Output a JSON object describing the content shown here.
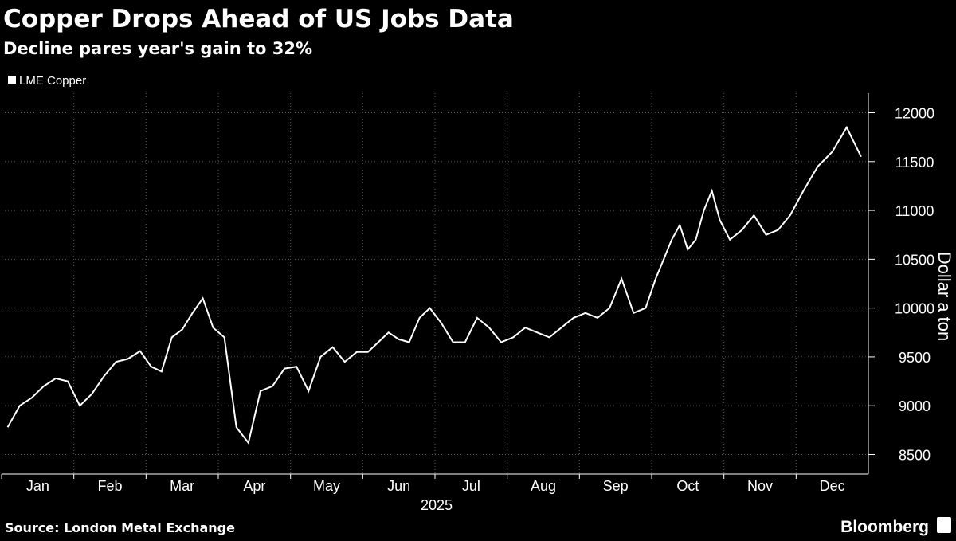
{
  "chart_data": {
    "type": "line",
    "title": "Copper Drops Ahead of US Jobs Data",
    "subtitle": "Decline pares year's gain to 32%",
    "x_label": "2025",
    "y_label": "Dollar a ton",
    "source": "Source: London Metal Exchange",
    "brand": "Bloomberg",
    "legend_position": "top-left",
    "grid": true,
    "x": [
      "2025-01",
      "2025-01",
      "2025-01",
      "2025-01",
      "2025-01",
      "2025-01",
      "2025-02",
      "2025-02",
      "2025-02",
      "2025-02",
      "2025-02",
      "2025-02",
      "2025-03",
      "2025-03",
      "2025-03",
      "2025-03",
      "2025-03",
      "2025-03",
      "2025-03",
      "2025-04",
      "2025-04",
      "2025-04",
      "2025-04",
      "2025-04",
      "2025-04",
      "2025-05",
      "2025-05",
      "2025-05",
      "2025-05",
      "2025-05",
      "2025-05",
      "2025-06",
      "2025-06",
      "2025-06",
      "2025-06",
      "2025-06",
      "2025-06",
      "2025-06",
      "2025-07",
      "2025-07",
      "2025-07",
      "2025-07",
      "2025-07",
      "2025-07",
      "2025-08",
      "2025-08",
      "2025-08",
      "2025-08",
      "2025-08",
      "2025-08",
      "2025-09",
      "2025-09",
      "2025-09",
      "2025-09",
      "2025-09",
      "2025-09",
      "2025-10",
      "2025-10",
      "2025-10",
      "2025-10",
      "2025-10",
      "2025-10",
      "2025-10",
      "2025-10",
      "2025-10",
      "2025-11",
      "2025-11",
      "2025-11",
      "2025-11",
      "2025-11",
      "2025-11",
      "2025-12",
      "2025-12",
      "2025-12",
      "2025-12",
      "2025-12"
    ],
    "series": [
      {
        "name": "LME Copper",
        "color": "#ffffff",
        "values": [
          8780,
          9000,
          9080,
          9200,
          9280,
          9250,
          9000,
          9120,
          9300,
          9450,
          9480,
          9560,
          9400,
          9350,
          9700,
          9780,
          9950,
          10100,
          9800,
          9700,
          8780,
          8620,
          9150,
          9200,
          9380,
          9400,
          9150,
          9500,
          9600,
          9450,
          9550,
          9550,
          9650,
          9750,
          9680,
          9650,
          9900,
          10000,
          9850,
          9650,
          9650,
          9900,
          9800,
          9650,
          9700,
          9800,
          9750,
          9700,
          9800,
          9900,
          9950,
          9900,
          10000,
          10300,
          9950,
          10000,
          10300,
          10500,
          10700,
          10850,
          10600,
          10700,
          11000,
          11200,
          10900,
          10700,
          10800,
          10950,
          10750,
          10800,
          10950,
          11200,
          11450,
          11600,
          11850,
          11550
        ]
      }
    ],
    "xticks": [
      {
        "value": "2025-01",
        "label": "Jan"
      },
      {
        "value": "2025-02",
        "label": "Feb"
      },
      {
        "value": "2025-03",
        "label": "Mar"
      },
      {
        "value": "2025-04",
        "label": "Apr"
      },
      {
        "value": "2025-05",
        "label": "May"
      },
      {
        "value": "2025-06",
        "label": "Jun"
      },
      {
        "value": "2025-07",
        "label": "Jul"
      },
      {
        "value": "2025-08",
        "label": "Aug"
      },
      {
        "value": "2025-09",
        "label": "Sep"
      },
      {
        "value": "2025-10",
        "label": "Oct"
      },
      {
        "value": "2025-11",
        "label": "Nov"
      },
      {
        "value": "2025-12",
        "label": "Dec"
      }
    ],
    "ylim": [
      8300,
      12200
    ],
    "yticks": [
      8500,
      9000,
      9500,
      10000,
      10500,
      11000,
      11500,
      12000
    ]
  }
}
